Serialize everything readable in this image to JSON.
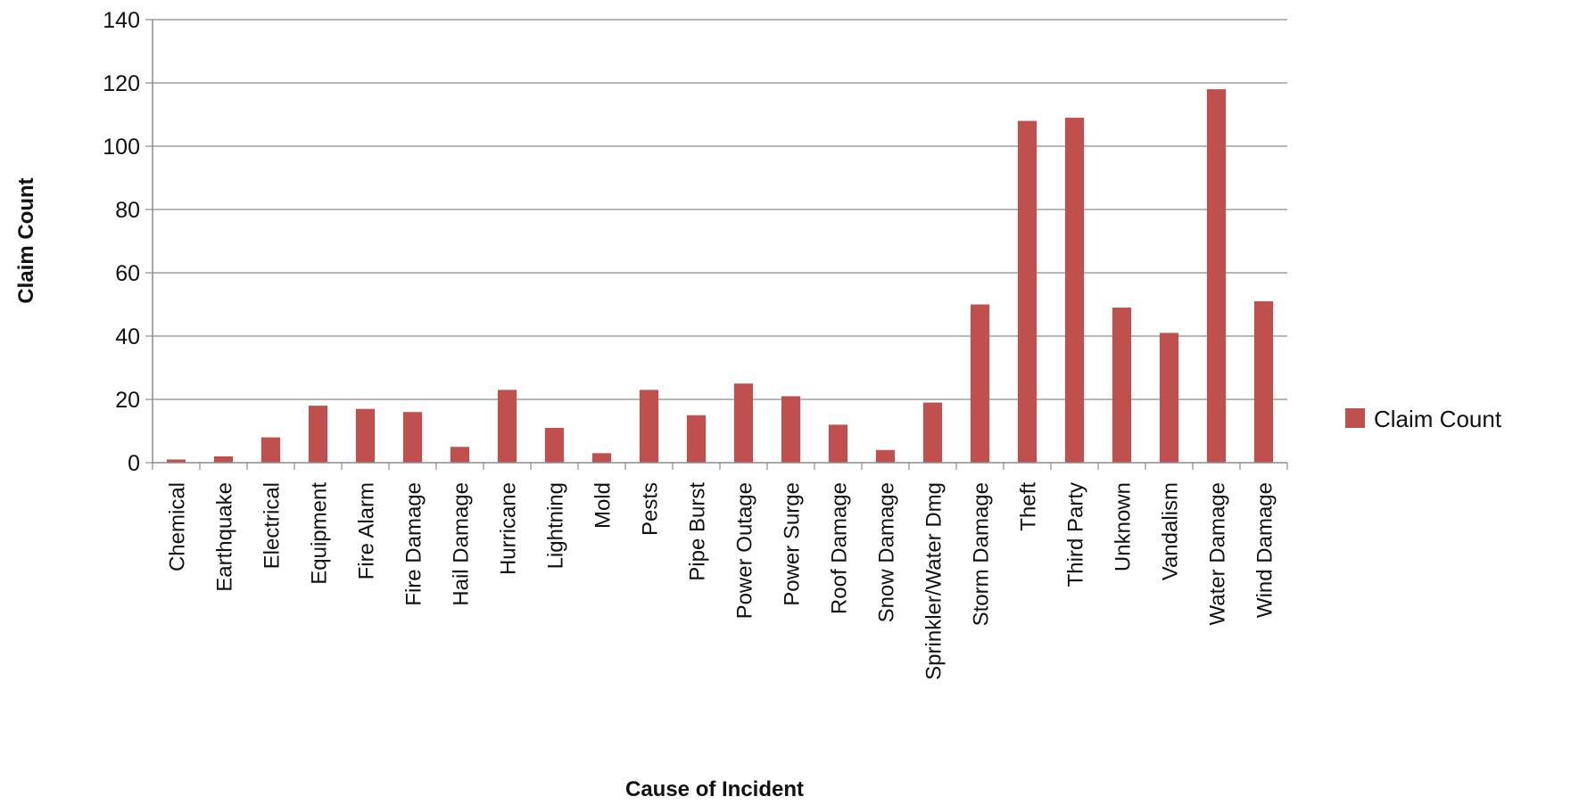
{
  "chart_data": {
    "type": "bar",
    "categories": [
      "Chemical",
      "Earthquake",
      "Electrical",
      "Equipment",
      "Fire Alarm",
      "Fire Damage",
      "Hail Damage",
      "Hurricane",
      "Lightning",
      "Mold",
      "Pests",
      "Pipe Burst",
      "Power Outage",
      "Power Surge",
      "Roof Damage",
      "Snow Damage",
      "Sprinkler/Water Dmg",
      "Storm Damage",
      "Theft",
      "Third Party",
      "Unknown",
      "Vandalism",
      "Water Damage",
      "Wind Damage"
    ],
    "series": [
      {
        "name": "Claim Count",
        "color": "#c0504d",
        "values": [
          1,
          2,
          8,
          18,
          17,
          16,
          5,
          23,
          11,
          3,
          23,
          15,
          25,
          21,
          12,
          4,
          19,
          50,
          108,
          109,
          49,
          41,
          118,
          51
        ]
      }
    ],
    "xlabel": "Cause of Incident",
    "ylabel": "Claim Count",
    "ylim": [
      0,
      140
    ],
    "yticks": [
      0,
      20,
      40,
      60,
      80,
      100,
      120,
      140
    ],
    "grid": true,
    "legend": "right"
  }
}
